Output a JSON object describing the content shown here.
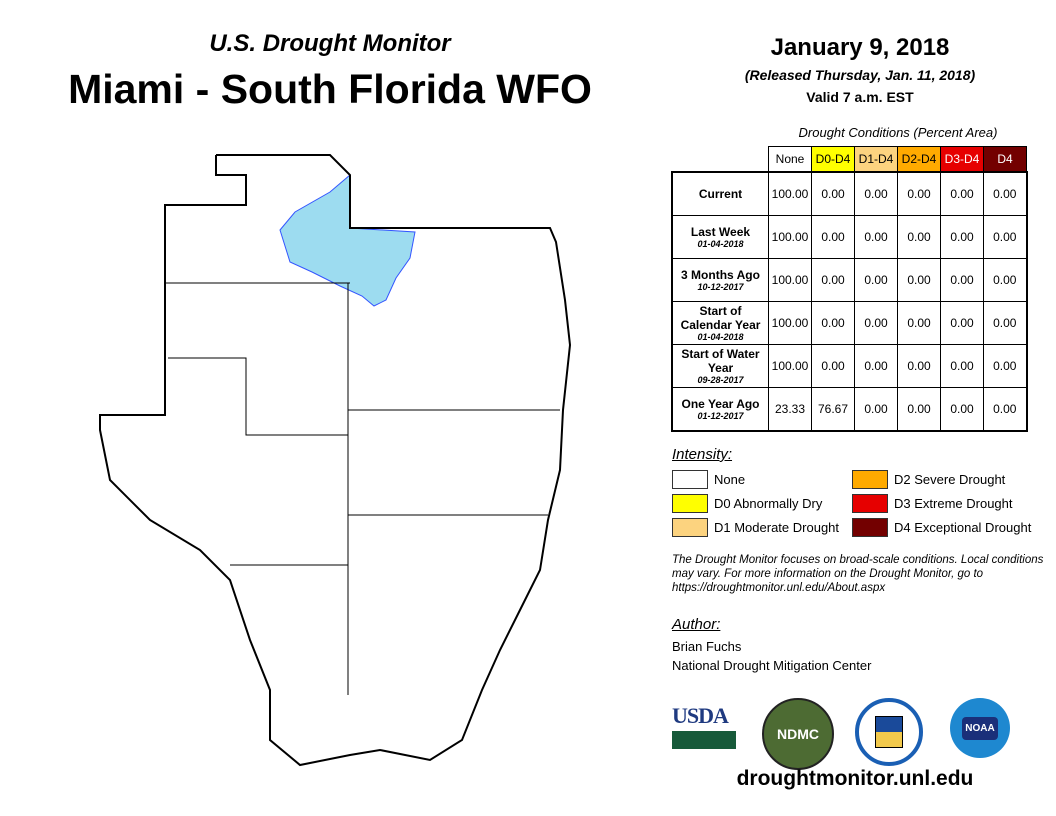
{
  "header": {
    "subtitle": "U.S. Drought Monitor",
    "title": "Miami - South Florida WFO",
    "date": "January 9, 2018",
    "released": "(Released Thursday, Jan. 11, 2018)",
    "valid": "Valid 7 a.m. EST"
  },
  "table": {
    "caption": "Drought Conditions (Percent Area)",
    "columns": [
      {
        "label": "None",
        "color": "#ffffff",
        "text": "#000"
      },
      {
        "label": "D0-D4",
        "color": "#ffff00",
        "text": "#000"
      },
      {
        "label": "D1-D4",
        "color": "#fcd37f",
        "text": "#000"
      },
      {
        "label": "D2-D4",
        "color": "#ffaa00",
        "text": "#000"
      },
      {
        "label": "D3-D4",
        "color": "#e60000",
        "text": "#fff"
      },
      {
        "label": "D4",
        "color": "#730000",
        "text": "#fff"
      }
    ],
    "rows": [
      {
        "label": "Current",
        "date": "",
        "values": [
          "100.00",
          "0.00",
          "0.00",
          "0.00",
          "0.00",
          "0.00"
        ]
      },
      {
        "label": "Last Week",
        "date": "01-04-2018",
        "values": [
          "100.00",
          "0.00",
          "0.00",
          "0.00",
          "0.00",
          "0.00"
        ]
      },
      {
        "label": "3 Months Ago",
        "date": "10-12-2017",
        "values": [
          "100.00",
          "0.00",
          "0.00",
          "0.00",
          "0.00",
          "0.00"
        ]
      },
      {
        "label": "Start of Calendar Year",
        "date": "01-04-2018",
        "values": [
          "100.00",
          "0.00",
          "0.00",
          "0.00",
          "0.00",
          "0.00"
        ]
      },
      {
        "label": "Start of Water Year",
        "date": "09-28-2017",
        "values": [
          "100.00",
          "0.00",
          "0.00",
          "0.00",
          "0.00",
          "0.00"
        ]
      },
      {
        "label": "One Year Ago",
        "date": "01-12-2017",
        "values": [
          "23.33",
          "76.67",
          "0.00",
          "0.00",
          "0.00",
          "0.00"
        ]
      }
    ]
  },
  "legend": {
    "title": "Intensity:",
    "items": [
      {
        "label": "None",
        "color": "#ffffff"
      },
      {
        "label": "D0 Abnormally Dry",
        "color": "#ffff00"
      },
      {
        "label": "D1 Moderate Drought",
        "color": "#fcd37f"
      },
      {
        "label": "D2 Severe Drought",
        "color": "#ffaa00"
      },
      {
        "label": "D3 Extreme Drought",
        "color": "#e60000"
      },
      {
        "label": "D4 Exceptional Drought",
        "color": "#730000"
      }
    ]
  },
  "note": "The Drought Monitor focuses on broad-scale conditions. Local conditions may vary. For more information on the Drought Monitor, go to https://droughtmonitor.unl.edu/About.aspx",
  "author": {
    "title": "Author:",
    "name": "Brian Fuchs",
    "org": "National Drought Mitigation Center"
  },
  "logos": {
    "usda": "USDA",
    "ndmc": "NDMC",
    "noaa": "NOAA"
  },
  "url": "droughtmonitor.unl.edu",
  "map": {
    "water_color": "#9ddcf0"
  }
}
